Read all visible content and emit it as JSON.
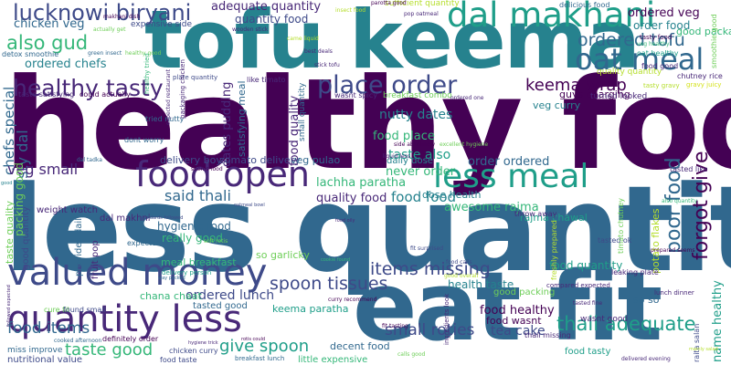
{
  "word_cloud": {
    "palette": {
      "dark_purple": "#440154",
      "indigo": "#482878",
      "blue_purple": "#3e4a89",
      "blue": "#31688e",
      "teal_blue": "#26828e",
      "teal": "#1f9e89",
      "green": "#35b779",
      "light_green": "#6ece58",
      "yellow_green": "#b5de2b",
      "yellow": "#d4e21a"
    },
    "words": [
      "healthy food",
      "less quantity",
      "tofu keema",
      "eat fit",
      "valued money",
      "quantity less",
      "food open",
      "less meal",
      "dal makhani",
      "oat meal",
      "place order",
      "lucknowi biryani",
      "healthy tasty",
      "also gud",
      "ordered tofu",
      "keema wrap",
      "items missing",
      "spoon tissues",
      "thali adequate",
      "taste good",
      "give spoon",
      "poor food",
      "forgot give",
      "food items",
      "small roties",
      "said thali",
      "food food",
      "quality food",
      "dates pudding",
      "nutty dates",
      "adequate quantity",
      "quantity food",
      "ordered veg",
      "order food",
      "chicken veg",
      "ordered chefs",
      "chefs special",
      "tasty dal",
      "veg small",
      "taste also",
      "food place",
      "never order",
      "order ordered",
      "lachha paratha",
      "zomato delivery",
      "delivery boy",
      "veg pulao",
      "daily dose",
      "dose health",
      "awesome rajma",
      "rajma chawal",
      "hygienic food",
      "really good",
      "so garlicky",
      "food quantity",
      "food healthy",
      "health taste",
      "good packing",
      "tea cake",
      "meal breakfast",
      "ordered lunch",
      "chana chaat",
      "tasted good",
      "keema paratha",
      "decent food",
      "little expensive",
      "good packaging",
      "name healthy",
      "potato flakes",
      "so so",
      "food wasnt",
      "food tasty",
      "wasnt good",
      "veg curry",
      "guys charging",
      "turned looked",
      "breakfast combo",
      "wasnt spicy",
      "like timato",
      "plate quantity",
      "quality quantity",
      "oat healthy",
      "food good",
      "tasty food",
      "taste satisfying",
      "could actually",
      "expensive side",
      "detox smoothie",
      "taste quality",
      "good quantity",
      "weight watch",
      "nutritional value",
      "miss improve",
      "chicken curry",
      "food taste",
      "breakfast lunch",
      "definitely order",
      "cooked afternoon",
      "dal makhni",
      "fruit pop",
      "expected rice",
      "provides daily",
      "tasted like",
      "throw away",
      "tasted ok",
      "thali missing",
      "raita salan",
      "leaking plate",
      "delivery person",
      "satisfying meal",
      "dont worry",
      "tried nutty",
      "cure fit",
      "found small",
      "smoothie good",
      "chutney rice",
      "gravy juicy",
      "tasty gravy",
      "sufficient quantity",
      "delicious food",
      "parotta good",
      "pop oatmeal",
      "insect food",
      "makhani dish",
      "actually get",
      "green insect",
      "wooden stick",
      "came liquid",
      "best deals",
      "stick tofu",
      "liquid less",
      "side absolutely",
      "excellent hygiene",
      "ordered one",
      "ingredients look",
      "delivered evening",
      "calls good",
      "good overall",
      "dal tadka",
      "good work",
      "healthy good",
      "veg healthy",
      "healthy tried",
      "food quality",
      "packing good",
      "small quantity",
      "packaging chicken",
      "expected restaurant",
      "fit surprised",
      "compared expected",
      "food calls",
      "freshly prepared",
      "prepared seems",
      "seems food",
      "timato chutney",
      "lunch dinner",
      "tasted fine",
      "curry recommend",
      "fit tasting",
      "hygiene trick",
      "rotis could",
      "also quantity",
      "mainly salad",
      "food oily",
      "followed expected",
      "standards followed",
      "oatmeal bowl",
      "cookie found",
      "way packed",
      "soft rotis"
    ]
  }
}
